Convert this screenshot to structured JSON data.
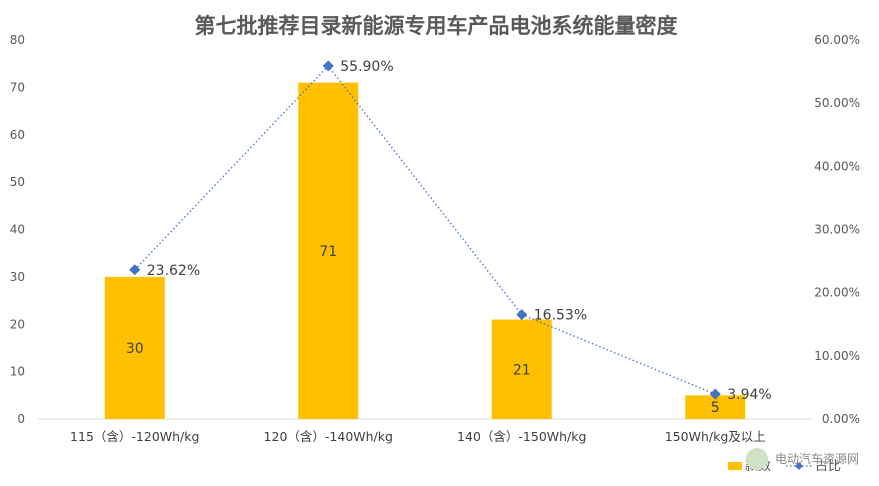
{
  "chart_data": {
    "type": "bar",
    "title": "第七批推荐目录新能源专用车产品电池系统能量密度",
    "categories": [
      "115（含）-120Wh/kg",
      "120（含）-140Wh/kg",
      "140（含）-150Wh/kg",
      "150Wh/kg及以上"
    ],
    "series": [
      {
        "name": "款数",
        "type": "bar",
        "axis": "left",
        "values": [
          30,
          71,
          21,
          5
        ],
        "color": "#FFC000",
        "data_labels": [
          "30",
          "71",
          "21",
          "5"
        ]
      },
      {
        "name": "占比",
        "type": "line",
        "axis": "right",
        "values": [
          23.62,
          55.9,
          16.53,
          3.94
        ],
        "color": "#4472C4",
        "data_labels": [
          "23.62%",
          "55.90%",
          "16.53%",
          "3.94%"
        ]
      }
    ],
    "ylim_left": [
      0,
      80
    ],
    "yticks_left": [
      "0",
      "10",
      "20",
      "30",
      "40",
      "50",
      "60",
      "70",
      "80"
    ],
    "ylim_right": [
      0,
      60
    ],
    "yticks_right": [
      "0.00%",
      "10.00%",
      "20.00%",
      "30.00%",
      "40.00%",
      "50.00%",
      "60.00%"
    ],
    "grid": false,
    "legend": "bottom-right"
  },
  "watermark": "电动汽车资源网"
}
